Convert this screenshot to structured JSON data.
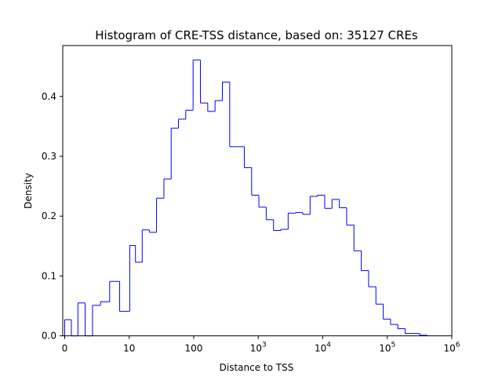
{
  "chart_data": {
    "type": "histogram",
    "title": "Histogram of CRE-TSS distance, based on: 35127 CREs",
    "xlabel": "Distance to TSS",
    "ylabel": "Density",
    "xscale": "symlog (linear below 10, log10 above)",
    "xlim": [
      -0.3,
      1000000
    ],
    "ylim": [
      0,
      0.485
    ],
    "grid": false,
    "legend": "none",
    "bar_style": "step outline",
    "colors": {
      "bars": "#0000ff",
      "axes": "#000000",
      "background": "#ffffff"
    },
    "x_ticks": [
      {
        "value": 0,
        "label": "0",
        "sup": ""
      },
      {
        "value": 10,
        "label": "10",
        "sup": ""
      },
      {
        "value": 100,
        "label": "100",
        "sup": ""
      },
      {
        "value": 1000,
        "label": "10",
        "sup": "3"
      },
      {
        "value": 10000,
        "label": "10",
        "sup": "4"
      },
      {
        "value": 100000,
        "label": "10",
        "sup": "5"
      },
      {
        "value": 1000000,
        "label": "10",
        "sup": "6"
      }
    ],
    "y_ticks": [
      {
        "value": 0.0,
        "label": "0.0"
      },
      {
        "value": 0.1,
        "label": "0.1"
      },
      {
        "value": 0.2,
        "label": "0.2"
      },
      {
        "value": 0.3,
        "label": "0.3"
      },
      {
        "value": 0.4,
        "label": "0.4"
      }
    ],
    "edges": [
      0,
      1.03,
      2.05,
      3.17,
      4.31,
      5.55,
      6.97,
      8.52,
      10.2,
      12.5,
      15.9,
      20.5,
      26.5,
      34.5,
      44.7,
      58.0,
      75.3,
      97.7,
      127,
      165,
      214,
      278,
      361,
      468,
      608,
      789,
      1023,
      1329,
      1724,
      2239,
      2907,
      3774,
      4900,
      6362,
      8260,
      10723,
      13920,
      18072,
      23463,
      30459,
      39545,
      51340,
      66650,
      86530,
      112340,
      145840,
      189330,
      245800,
      319100,
      414300
    ],
    "values": [
      0.027,
      0.0,
      0.055,
      0.0,
      0.051,
      0.057,
      0.091,
      0.041,
      0.151,
      0.123,
      0.177,
      0.173,
      0.23,
      0.262,
      0.347,
      0.362,
      0.377,
      0.461,
      0.389,
      0.375,
      0.393,
      0.424,
      0.316,
      0.316,
      0.281,
      0.235,
      0.215,
      0.194,
      0.176,
      0.178,
      0.205,
      0.206,
      0.203,
      0.233,
      0.235,
      0.213,
      0.228,
      0.214,
      0.185,
      0.142,
      0.109,
      0.082,
      0.053,
      0.028,
      0.019,
      0.012,
      0.004,
      0.004,
      0.001
    ]
  }
}
